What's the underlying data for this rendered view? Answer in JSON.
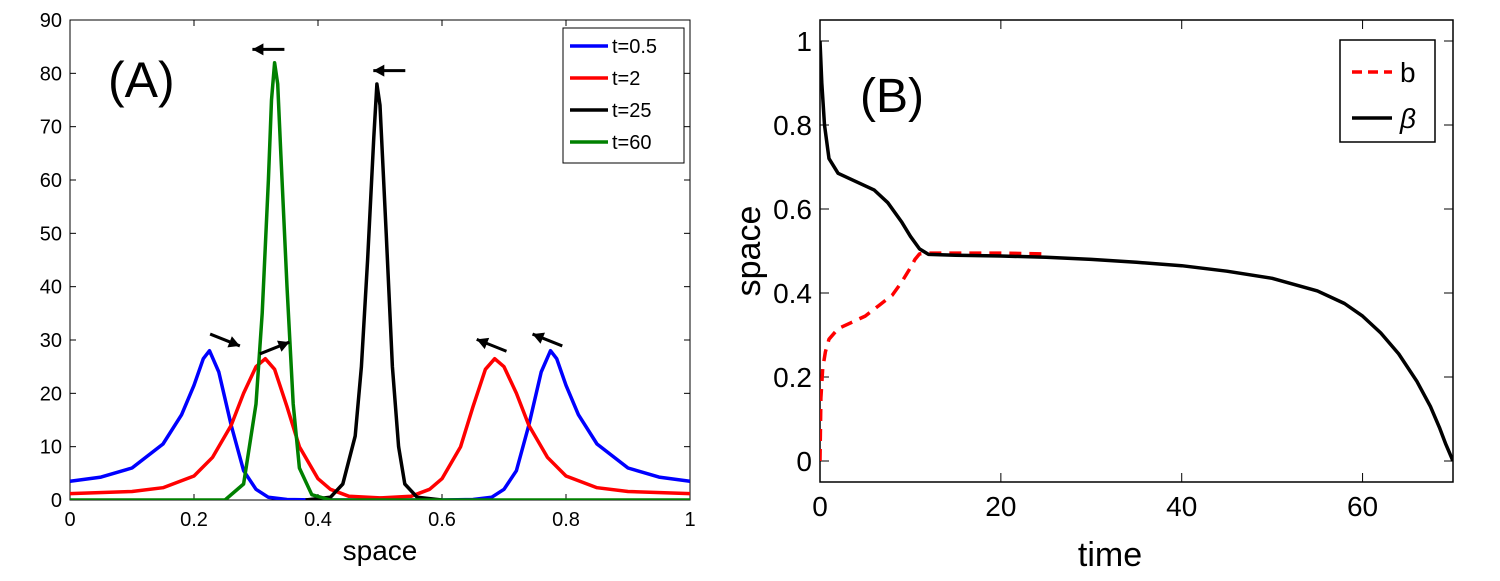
{
  "chart_data": [
    {
      "type": "line",
      "panel_label": "(A)",
      "title": "",
      "xlabel": "space",
      "ylabel": "",
      "xlim": [
        0,
        1
      ],
      "ylim": [
        0,
        90
      ],
      "xticks": [
        "0",
        "0.2",
        "0.4",
        "0.6",
        "0.8",
        "1"
      ],
      "yticks": [
        "0",
        "10",
        "20",
        "30",
        "40",
        "50",
        "60",
        "70",
        "80",
        "90"
      ],
      "legend_position": "top-right",
      "series": [
        {
          "name": "t=0.5",
          "color": "#0000ff",
          "x": [
            0.0,
            0.05,
            0.1,
            0.15,
            0.18,
            0.2,
            0.215,
            0.225,
            0.24,
            0.26,
            0.28,
            0.3,
            0.32,
            0.35,
            0.4,
            0.5,
            0.6,
            0.65,
            0.68,
            0.7,
            0.72,
            0.74,
            0.76,
            0.775,
            0.785,
            0.8,
            0.82,
            0.85,
            0.9,
            0.95,
            1.0
          ],
          "y": [
            3.5,
            4.3,
            6.0,
            10.5,
            16.0,
            21.5,
            26.5,
            28.0,
            24.0,
            14.0,
            5.5,
            2.0,
            0.5,
            0.1,
            0.0,
            0.0,
            0.0,
            0.1,
            0.5,
            2.0,
            5.5,
            14.0,
            24.0,
            28.0,
            26.5,
            21.5,
            16.0,
            10.5,
            6.0,
            4.3,
            3.5
          ]
        },
        {
          "name": "t=2",
          "color": "#ff0000",
          "x": [
            0.0,
            0.1,
            0.15,
            0.2,
            0.23,
            0.26,
            0.28,
            0.3,
            0.315,
            0.33,
            0.35,
            0.37,
            0.4,
            0.42,
            0.45,
            0.5,
            0.55,
            0.58,
            0.6,
            0.63,
            0.65,
            0.67,
            0.685,
            0.7,
            0.72,
            0.74,
            0.77,
            0.8,
            0.85,
            0.9,
            1.0
          ],
          "y": [
            1.2,
            1.6,
            2.3,
            4.5,
            8.0,
            14.0,
            20.0,
            25.0,
            26.5,
            24.5,
            17.5,
            10.0,
            4.0,
            2.0,
            0.7,
            0.4,
            0.7,
            2.0,
            4.0,
            10.0,
            17.5,
            24.5,
            26.5,
            25.0,
            20.0,
            14.0,
            8.0,
            4.5,
            2.3,
            1.6,
            1.2
          ]
        },
        {
          "name": "t=25",
          "color": "#000000",
          "x": [
            0.38,
            0.42,
            0.44,
            0.46,
            0.47,
            0.48,
            0.49,
            0.495,
            0.5,
            0.51,
            0.52,
            0.53,
            0.54,
            0.56,
            0.6
          ],
          "y": [
            0.0,
            0.5,
            3.0,
            12.0,
            25.0,
            45.0,
            68.0,
            78.0,
            74.0,
            50.0,
            25.0,
            10.0,
            3.0,
            0.5,
            0.0
          ],
          "annotation_arrow": "left"
        },
        {
          "name": "t=60",
          "color": "#008000",
          "x": [
            0.0,
            0.25,
            0.28,
            0.3,
            0.31,
            0.32,
            0.325,
            0.33,
            0.335,
            0.34,
            0.35,
            0.36,
            0.37,
            0.39,
            0.42,
            1.0
          ],
          "y": [
            0.0,
            0.0,
            3.0,
            18.0,
            35.0,
            60.0,
            75.0,
            82.0,
            78.0,
            65.0,
            40.0,
            18.0,
            6.0,
            1.0,
            0.0,
            0.0
          ],
          "annotation_arrow": "left"
        }
      ],
      "annotations": [
        {
          "type": "arrow",
          "direction": "right-down",
          "x": 0.25,
          "y": 30
        },
        {
          "type": "arrow",
          "direction": "right-up",
          "x": 0.33,
          "y": 28.5
        },
        {
          "type": "arrow",
          "direction": "left-up",
          "x": 0.68,
          "y": 29
        },
        {
          "type": "arrow",
          "direction": "left-up",
          "x": 0.77,
          "y": 30
        },
        {
          "type": "arrow",
          "direction": "left",
          "x": 0.32,
          "y": 84.5
        },
        {
          "type": "arrow",
          "direction": "left",
          "x": 0.515,
          "y": 80.5
        }
      ]
    },
    {
      "type": "line",
      "panel_label": "(B)",
      "title": "",
      "xlabel": "time",
      "ylabel": "space",
      "xlim": [
        0,
        70
      ],
      "ylim": [
        -0.05,
        1.05
      ],
      "xticks": [
        "0",
        "20",
        "40",
        "60"
      ],
      "yticks": [
        "0",
        "0.2",
        "0.4",
        "0.6",
        "0.8",
        "1"
      ],
      "legend_position": "top-right",
      "series": [
        {
          "name": "b",
          "color": "#ff0000",
          "style": "dashed",
          "x": [
            0.0,
            0.1,
            0.3,
            0.6,
            1.0,
            2.0,
            3.5,
            5.0,
            6.5,
            8.0,
            9.0,
            10.0,
            10.5,
            11.0,
            12.0,
            15.0,
            20.0,
            25.0
          ],
          "y": [
            0.0,
            0.15,
            0.22,
            0.26,
            0.29,
            0.315,
            0.33,
            0.345,
            0.37,
            0.395,
            0.425,
            0.46,
            0.48,
            0.493,
            0.495,
            0.495,
            0.495,
            0.493
          ]
        },
        {
          "name": "β",
          "color": "#000000",
          "style": "solid",
          "x": [
            0.0,
            0.2,
            0.5,
            1.0,
            2.0,
            4.0,
            6.0,
            7.5,
            9.0,
            10.0,
            11.0,
            12.0,
            15.0,
            20.0,
            25.0,
            30.0,
            35.0,
            40.0,
            45.0,
            50.0,
            55.0,
            58.0,
            60.0,
            62.0,
            64.0,
            66.0,
            67.5,
            68.5,
            69.2,
            70.0
          ],
          "y": [
            1.0,
            0.9,
            0.8,
            0.72,
            0.685,
            0.665,
            0.645,
            0.615,
            0.57,
            0.535,
            0.505,
            0.492,
            0.49,
            0.488,
            0.485,
            0.48,
            0.473,
            0.465,
            0.452,
            0.435,
            0.405,
            0.375,
            0.345,
            0.305,
            0.255,
            0.19,
            0.13,
            0.08,
            0.04,
            0.0
          ]
        }
      ]
    }
  ]
}
